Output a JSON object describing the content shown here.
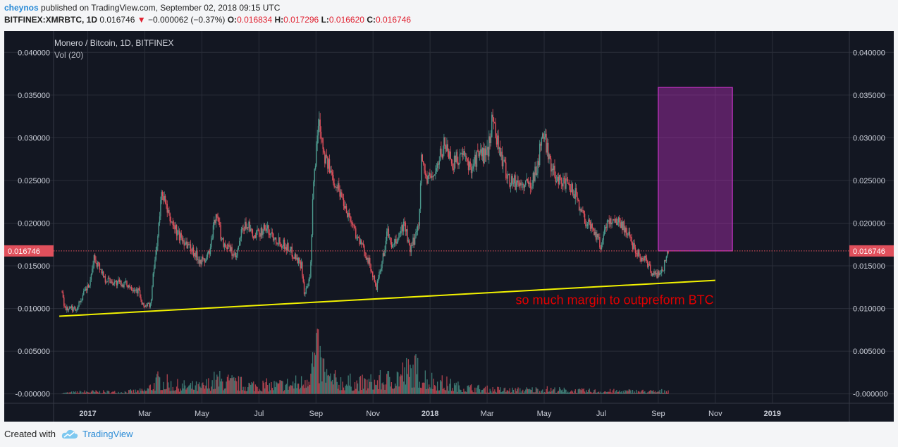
{
  "header": {
    "user": "cheynos",
    "published_text": "published on TradingView.com, September 02, 2018 09:15 UTC",
    "symbol": "BITFINEX:XMRBTC, 1D",
    "last": "0.016746",
    "down_arrow": "▼",
    "change": "−0.000062 (−0.37%)",
    "open_label": "O:",
    "open": "0.016834",
    "high_label": "H:",
    "high": "0.017296",
    "low_label": "L:",
    "low": "0.016620",
    "close_label": "C:",
    "close": "0.016746"
  },
  "chart_data": {
    "type": "candlestick",
    "title": "Monero / Bitcoin, 1D, BITFINEX",
    "indicator": "Vol (20)",
    "ylim": [
      -0.0011,
      0.0425
    ],
    "y_ticks": [
      0.0,
      0.005,
      0.01,
      0.015,
      0.02,
      0.025,
      0.03,
      0.035,
      0.04
    ],
    "y_tick_labels": [
      "-0.000000",
      "0.005000",
      "0.010000",
      "0.015000",
      "0.020000",
      "0.025000",
      "0.030000",
      "0.035000",
      "0.040000"
    ],
    "x_ticks": [
      "2017",
      "Mar",
      "May",
      "Jul",
      "Sep",
      "Nov",
      "2018",
      "Mar",
      "May",
      "Jul",
      "Sep",
      "Nov",
      "2019"
    ],
    "x_tick_months": [
      0,
      2,
      4,
      6,
      8,
      10,
      12,
      14,
      16,
      18,
      20,
      22,
      24
    ],
    "x_start_month": -1.2,
    "x_end_month": 26.7,
    "last_price": 0.016746,
    "last_price_label": "0.016746",
    "price_path": [
      [
        -0.9,
        0.012
      ],
      [
        -0.8,
        0.01
      ],
      [
        -0.4,
        0.01
      ],
      [
        -0.1,
        0.012
      ],
      [
        0.1,
        0.013
      ],
      [
        0.2,
        0.016
      ],
      [
        0.4,
        0.015
      ],
      [
        0.6,
        0.0135
      ],
      [
        1.0,
        0.013
      ],
      [
        1.4,
        0.0128
      ],
      [
        1.8,
        0.012
      ],
      [
        1.9,
        0.0103
      ],
      [
        2.2,
        0.0104
      ],
      [
        2.3,
        0.014
      ],
      [
        2.5,
        0.02
      ],
      [
        2.6,
        0.024
      ],
      [
        2.8,
        0.021
      ],
      [
        3.2,
        0.0185
      ],
      [
        3.6,
        0.0172
      ],
      [
        3.9,
        0.0158
      ],
      [
        4.1,
        0.0155
      ],
      [
        4.3,
        0.017
      ],
      [
        4.5,
        0.0215
      ],
      [
        4.7,
        0.018
      ],
      [
        5.0,
        0.0168
      ],
      [
        5.2,
        0.0158
      ],
      [
        5.4,
        0.019
      ],
      [
        5.6,
        0.02
      ],
      [
        5.8,
        0.0182
      ],
      [
        6.2,
        0.0195
      ],
      [
        6.6,
        0.0182
      ],
      [
        7.0,
        0.0172
      ],
      [
        7.3,
        0.016
      ],
      [
        7.5,
        0.015
      ],
      [
        7.6,
        0.0115
      ],
      [
        7.8,
        0.0135
      ],
      [
        7.9,
        0.024
      ],
      [
        8.1,
        0.0325
      ],
      [
        8.3,
        0.028
      ],
      [
        8.5,
        0.026
      ],
      [
        8.8,
        0.024
      ],
      [
        9.2,
        0.0205
      ],
      [
        9.5,
        0.018
      ],
      [
        9.8,
        0.016
      ],
      [
        10.0,
        0.0138
      ],
      [
        10.1,
        0.0122
      ],
      [
        10.3,
        0.015
      ],
      [
        10.5,
        0.019
      ],
      [
        10.7,
        0.017
      ],
      [
        10.9,
        0.0185
      ],
      [
        11.1,
        0.02
      ],
      [
        11.3,
        0.0165
      ],
      [
        11.6,
        0.02
      ],
      [
        11.7,
        0.0275
      ],
      [
        11.9,
        0.025
      ],
      [
        12.2,
        0.026
      ],
      [
        12.5,
        0.0295
      ],
      [
        12.8,
        0.027
      ],
      [
        13.1,
        0.028
      ],
      [
        13.4,
        0.0265
      ],
      [
        13.7,
        0.028
      ],
      [
        14.0,
        0.028
      ],
      [
        14.2,
        0.0325
      ],
      [
        14.4,
        0.029
      ],
      [
        14.6,
        0.0265
      ],
      [
        14.8,
        0.025
      ],
      [
        15.2,
        0.0245
      ],
      [
        15.5,
        0.0245
      ],
      [
        15.8,
        0.027
      ],
      [
        15.9,
        0.0305
      ],
      [
        16.1,
        0.029
      ],
      [
        16.3,
        0.026
      ],
      [
        16.6,
        0.025
      ],
      [
        16.9,
        0.024
      ],
      [
        17.1,
        0.0235
      ],
      [
        17.3,
        0.0215
      ],
      [
        17.5,
        0.02
      ],
      [
        17.7,
        0.0195
      ],
      [
        17.9,
        0.018
      ],
      [
        18.0,
        0.017
      ],
      [
        18.1,
        0.0195
      ],
      [
        18.4,
        0.0205
      ],
      [
        18.7,
        0.02
      ],
      [
        18.9,
        0.019
      ],
      [
        19.1,
        0.0175
      ],
      [
        19.4,
        0.016
      ],
      [
        19.6,
        0.0155
      ],
      [
        19.8,
        0.014
      ],
      [
        20.0,
        0.014
      ],
      [
        20.2,
        0.015
      ],
      [
        20.35,
        0.016746
      ]
    ],
    "volume_envelope": [
      [
        -0.9,
        0.0002
      ],
      [
        0.0,
        0.0005
      ],
      [
        1.0,
        0.0004
      ],
      [
        2.0,
        0.0007
      ],
      [
        2.5,
        0.003
      ],
      [
        3.0,
        0.0018
      ],
      [
        4.0,
        0.0015
      ],
      [
        4.5,
        0.003
      ],
      [
        5.5,
        0.002
      ],
      [
        6.5,
        0.0018
      ],
      [
        7.5,
        0.0025
      ],
      [
        8.0,
        0.0085
      ],
      [
        8.5,
        0.003
      ],
      [
        9.5,
        0.0022
      ],
      [
        10.5,
        0.003
      ],
      [
        11.0,
        0.0045
      ],
      [
        11.5,
        0.005
      ],
      [
        12.0,
        0.003
      ],
      [
        13.0,
        0.0015
      ],
      [
        14.0,
        0.001
      ],
      [
        15.0,
        0.0008
      ],
      [
        16.0,
        0.001
      ],
      [
        17.0,
        0.0007
      ],
      [
        18.0,
        0.0006
      ],
      [
        19.0,
        0.0006
      ],
      [
        20.0,
        0.0005
      ],
      [
        20.35,
        0.0008
      ]
    ],
    "trendline": {
      "from": [
        -1.0,
        0.0091
      ],
      "to": [
        22.0,
        0.0133
      ],
      "color": "#f2f200"
    },
    "projection_box": {
      "from_month": 20.0,
      "to_month": 22.6,
      "bottom": 0.016746,
      "top": 0.0359,
      "color": "#cc33cc"
    },
    "annotation": {
      "text": "so much margin to outpreform BTC",
      "month": 15.0,
      "price": 0.0105,
      "color": "#e00000"
    }
  },
  "footer": {
    "created_with": "Created with",
    "brand": "TradingView"
  },
  "colors": {
    "bg": "#131722",
    "grid": "#2a2e39",
    "up": "#4c9a8e",
    "down": "#e0505c",
    "price_label_bg": "#e0505c"
  }
}
